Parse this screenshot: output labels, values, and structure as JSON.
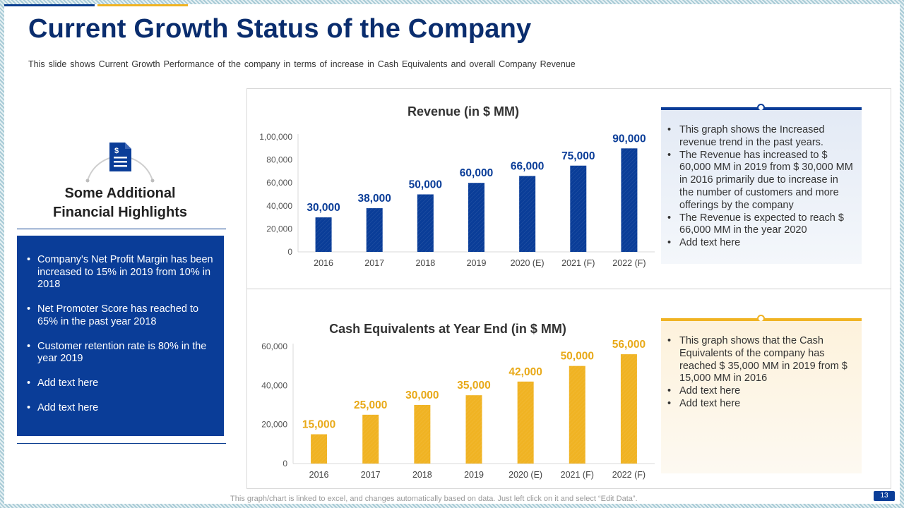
{
  "slide": {
    "title": "Current Growth Status of the Company",
    "subtitle": "This slide shows Current Growth Performance of the company in terms of increase in Cash Equivalents and overall Company Revenue",
    "footnote": "This graph/chart is linked to excel, and changes automatically based on data. Just left click on it and select “Edit Data”.",
    "page_number": "13",
    "icon": "document-icon"
  },
  "left_panel": {
    "heading_line1": "Some Additional",
    "heading_line2": "Financial Highlights",
    "bullets": [
      "Company's Net Profit Margin has been increased to 15% in 2019 from 10% in 2018",
      "Net Promoter Score has reached to 65% in the past year 2018",
      "Customer retention rate is 80% in the year 2019",
      "Add text here",
      "Add text here"
    ]
  },
  "revenue_notes": [
    "This graph shows the Increased revenue trend in the past years.",
    "The Revenue has increased to $ 60,000 MM in 2019 from $ 30,000 MM in 2016 primarily due to increase in the number of customers and more offerings by the company",
    "The Revenue is expected to reach $ 66,000 MM in the year 2020",
    "Add text here"
  ],
  "cash_notes": [
    "This graph shows that the Cash Equivalents of the company has reached $ 35,000 MM in 2019 from $ 15,000 MM in 2016",
    "Add text here",
    "Add text here"
  ],
  "colors": {
    "primary_blue": "#0a3d98",
    "gold": "#f0b323",
    "title_navy": "#0a2d6e"
  },
  "chart_data": [
    {
      "type": "bar",
      "title": "Revenue (in $ MM)",
      "categories": [
        "2016",
        "2017",
        "2018",
        "2019",
        "2020 (E)",
        "2021 (F)",
        "2022 (F)"
      ],
      "values": [
        30000,
        38000,
        50000,
        60000,
        66000,
        75000,
        90000
      ],
      "value_labels": [
        "30,000",
        "38,000",
        "50,000",
        "60,000",
        "66,000",
        "75,000",
        "90,000"
      ],
      "ylim": [
        0,
        100000
      ],
      "yticks": [
        0,
        20000,
        40000,
        60000,
        80000,
        100000
      ],
      "ytick_labels": [
        "0",
        "20,000",
        "40,000",
        "60,000",
        "80,000",
        "1,00,000"
      ],
      "color": "#0a3d98",
      "xlabel": "",
      "ylabel": ""
    },
    {
      "type": "bar",
      "title": "Cash Equivalents at Year End (in $ MM)",
      "categories": [
        "2016",
        "2017",
        "2018",
        "2019",
        "2020 (E)",
        "2021 (F)",
        "2022 (F)"
      ],
      "values": [
        15000,
        25000,
        30000,
        35000,
        42000,
        50000,
        56000
      ],
      "value_labels": [
        "15,000",
        "25,000",
        "30,000",
        "35,000",
        "42,000",
        "50,000",
        "56,000"
      ],
      "ylim": [
        0,
        60000
      ],
      "yticks": [
        0,
        20000,
        40000,
        60000
      ],
      "ytick_labels": [
        "0",
        "20,000",
        "40,000",
        "60,000"
      ],
      "color": "#f0b323",
      "xlabel": "",
      "ylabel": ""
    }
  ]
}
